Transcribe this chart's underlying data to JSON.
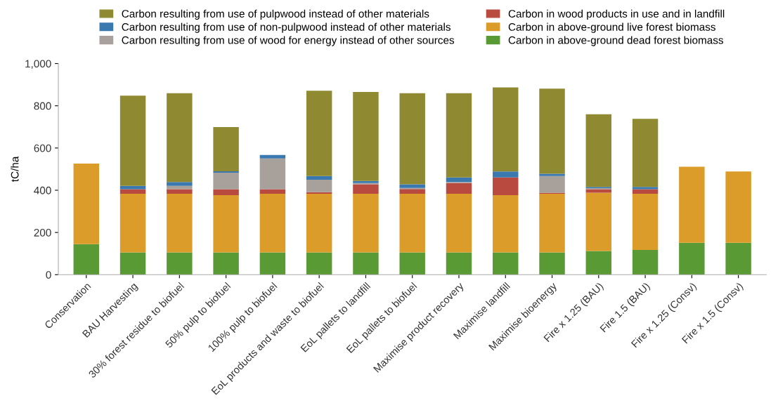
{
  "chart_data": {
    "type": "bar",
    "stacked": true,
    "ylabel": "tC/ha",
    "categories": [
      "Conservation",
      "BAU Harvesting",
      "30% forest residue to biofuel",
      "50% pulp to biofuel",
      "100% pulp to biofuel",
      "EoL products and waste to biofuel",
      "EoL pallets to landfill",
      "EoL pallets to biofuel",
      "Maximise product recovery",
      "Maximise landfill",
      "Maximise bioenergy",
      "Fire x 1.25 (BAU)",
      "Fire 1.5 (BAU)",
      "Fire x 1.25 (Consv)",
      "Fire x 1.5 (Consv)"
    ],
    "series": [
      {
        "name": "Carbon in above-ground dead forest biomass",
        "color": "#5a9a35",
        "values": [
          145,
          106,
          106,
          106,
          106,
          106,
          106,
          106,
          106,
          106,
          106,
          112,
          117,
          151,
          151
        ]
      },
      {
        "name": "Carbon in above-ground live forest biomass",
        "color": "#dc9c2a",
        "values": [
          381,
          277,
          277,
          271,
          277,
          277,
          277,
          277,
          277,
          271,
          277,
          276,
          266,
          360,
          338
        ]
      },
      {
        "name": "Carbon in wood products in use and in landfill",
        "color": "#b94a40",
        "values": [
          null,
          22,
          22,
          28,
          22,
          8,
          45,
          23,
          51,
          84,
          5,
          17,
          22,
          null,
          null
        ]
      },
      {
        "name": "Carbon resulting from use of wood for energy instead of other sources",
        "color": "#a8a09b",
        "values": [
          null,
          null,
          16,
          78,
          145,
          59,
          6,
          5,
          5,
          null,
          79,
          5,
          null,
          null,
          null
        ]
      },
      {
        "name": "Carbon resulting from use of non-pulpwood instead of other materials",
        "color": "#3a78b0",
        "values": [
          null,
          16,
          18,
          7,
          17,
          17,
          10,
          17,
          22,
          28,
          11,
          6,
          11,
          null,
          null
        ]
      },
      {
        "name": "Carbon resulting from use of pulpwood instead of other materials",
        "color": "#8f8a32",
        "values": [
          null,
          427,
          421,
          209,
          null,
          404,
          421,
          432,
          399,
          398,
          403,
          344,
          322,
          null,
          null
        ]
      }
    ],
    "ylim": [
      0,
      1000
    ],
    "yticks": [
      0,
      200,
      400,
      600,
      800,
      {
        "value": 1000,
        "label": "1,000"
      }
    ],
    "grid": false,
    "legend": "top"
  }
}
